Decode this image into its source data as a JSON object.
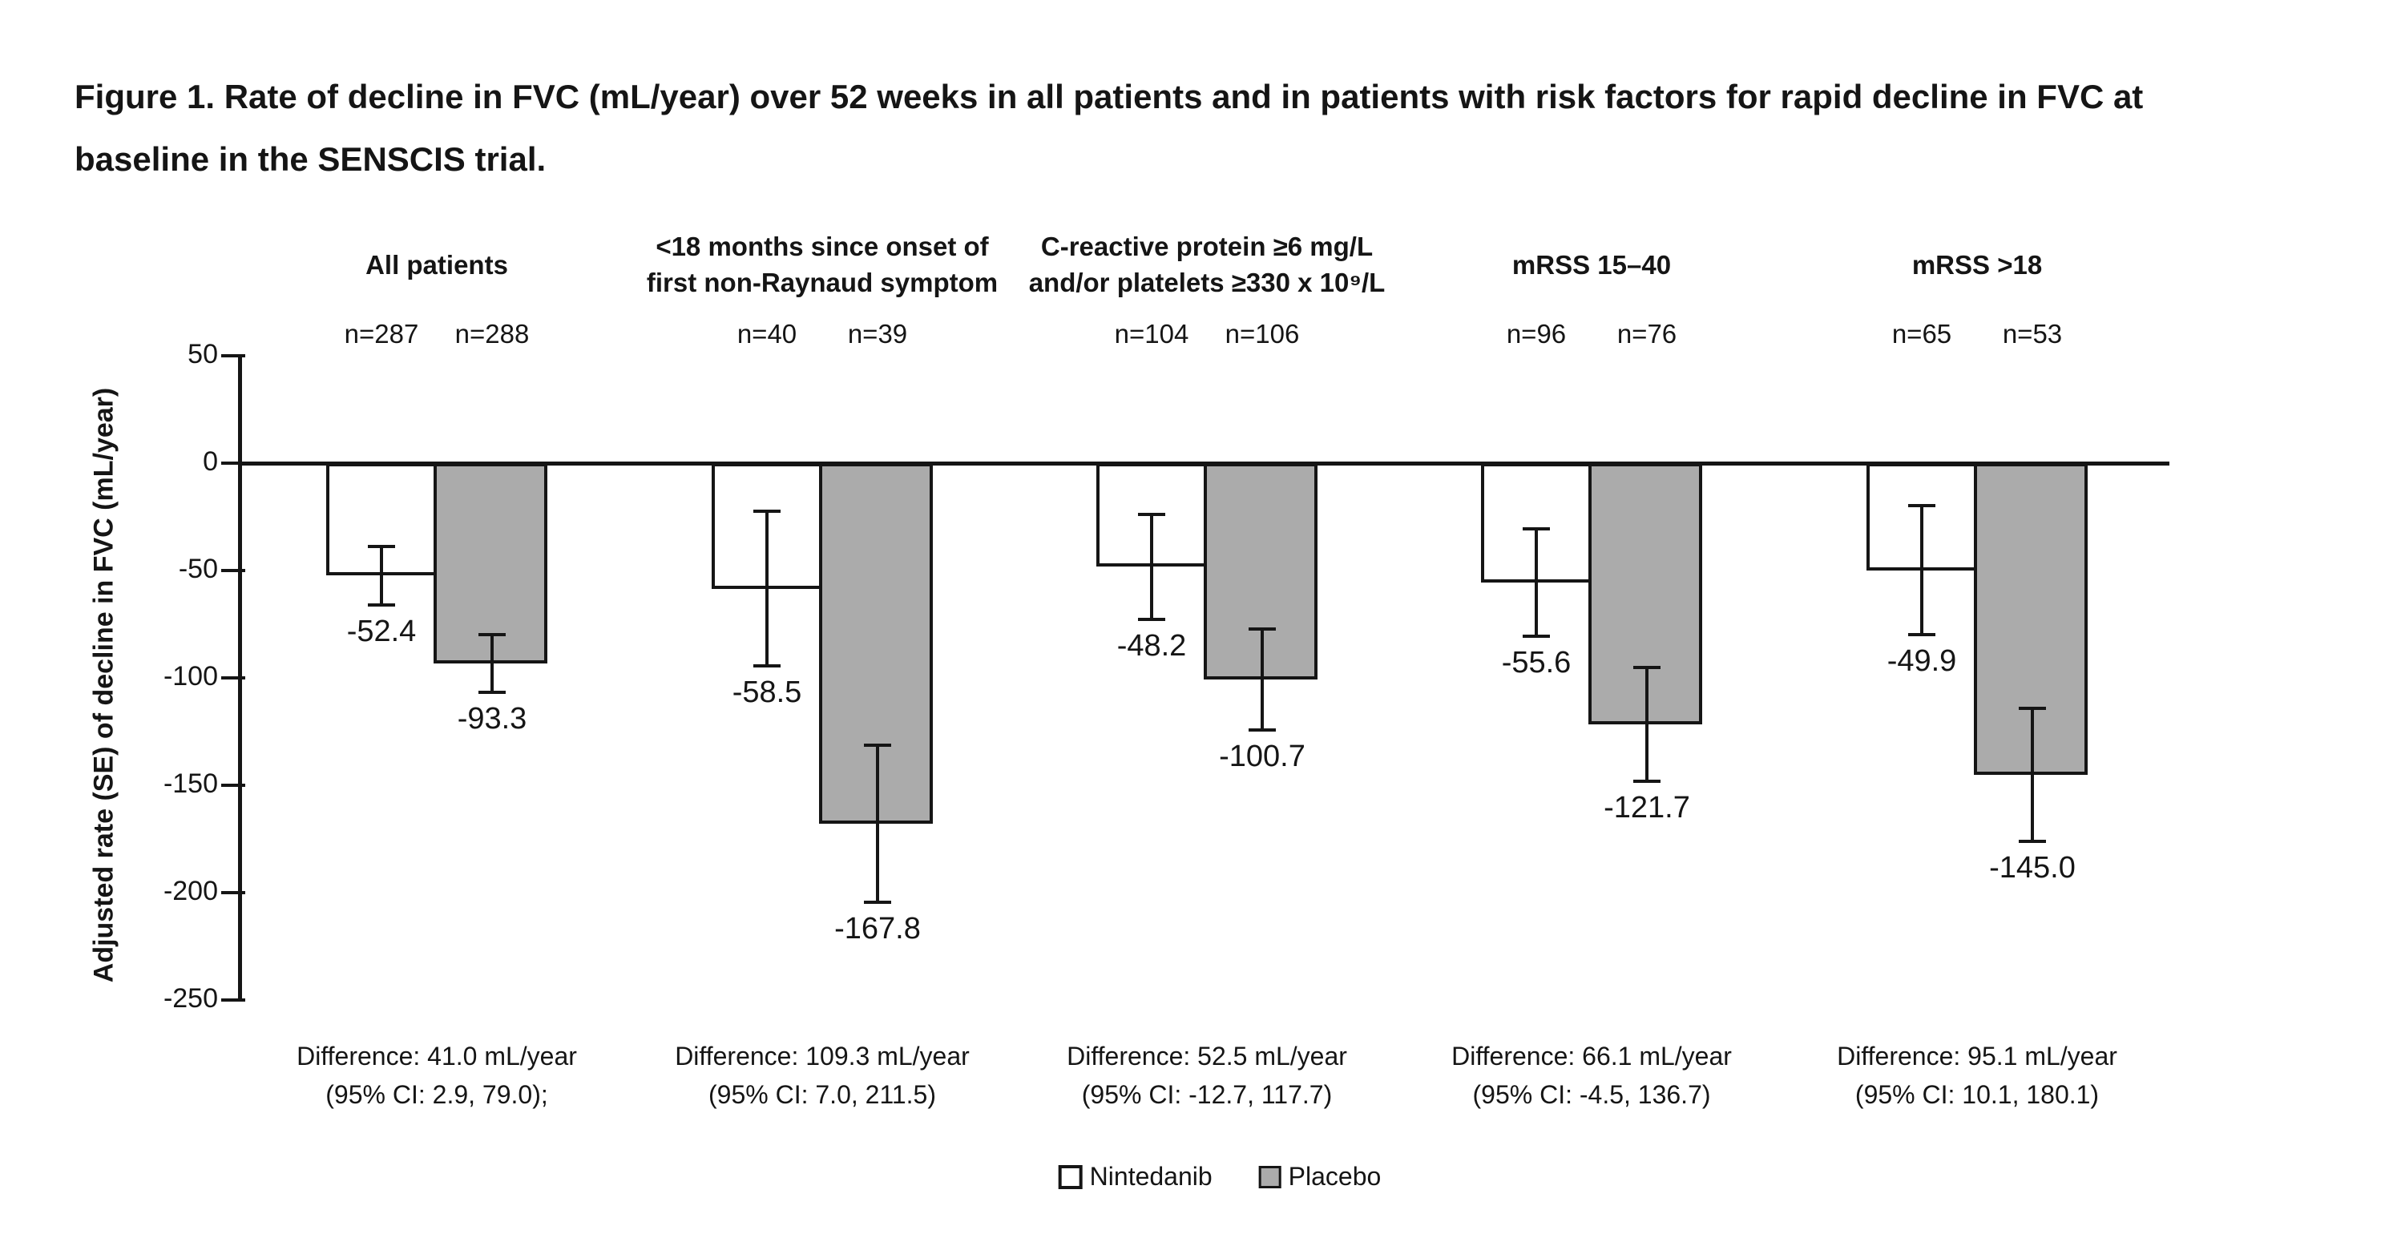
{
  "figure": {
    "title_line1": "Figure 1. Rate of decline in FVC (mL/year) over 52 weeks in all patients and in patients with risk factors for rapid decline in FVC at",
    "title_line2": "baseline in the SENSCIS trial."
  },
  "chart_data": {
    "type": "bar",
    "title": "Rate of decline in FVC (mL/year) over 52 weeks in all patients and in patients with risk factors for rapid decline in FVC at baseline in the SENSCIS trial",
    "ylabel": "Adjusted rate (SE) of decline in FVC (mL/year)",
    "ylim": [
      -250,
      50
    ],
    "yticks": [
      50,
      0,
      -50,
      -100,
      -150,
      -200,
      -250
    ],
    "grid": false,
    "legend_position": "bottom",
    "categories": [
      [
        "All patients"
      ],
      [
        "<18 months since onset of",
        "first non-Raynaud symptom"
      ],
      [
        "C-reactive protein ≥6 mg/L",
        "and/or platelets ≥330 x 10⁹/L"
      ],
      [
        "mRSS 15–40"
      ],
      [
        "mRSS >18"
      ]
    ],
    "series": [
      {
        "name": "Nintedanib",
        "fill": "#FFFFFF",
        "values": [
          -52.4,
          -58.5,
          -48.2,
          -55.6,
          -49.9
        ],
        "se": [
          13.5,
          36.0,
          24.5,
          25.0,
          30.0
        ],
        "n": [
          "n=287",
          "n=40",
          "n=104",
          "n=96",
          "n=65"
        ]
      },
      {
        "name": "Placebo",
        "fill": "#ABABAB",
        "values": [
          -93.3,
          -167.8,
          -100.7,
          -121.7,
          -145.0
        ],
        "se": [
          13.5,
          36.5,
          23.5,
          26.5,
          31.0
        ],
        "n": [
          "n=288",
          "n=39",
          "n=106",
          "n=76",
          "n=53"
        ]
      }
    ],
    "differences": [
      [
        "Difference: 41.0 mL/year",
        "(95% CI: 2.9, 79.0);"
      ],
      [
        "Difference: 109.3 mL/year",
        "(95% CI: 7.0, 211.5)"
      ],
      [
        "Difference: 52.5 mL/year",
        "(95% CI: -12.7, 117.7)"
      ],
      [
        "Difference: 66.1 mL/year",
        "(95% CI: -4.5, 136.7)"
      ],
      [
        "Difference: 95.1 mL/year",
        "(95% CI: 10.1, 180.1)"
      ]
    ],
    "ink_color": "#151515"
  }
}
